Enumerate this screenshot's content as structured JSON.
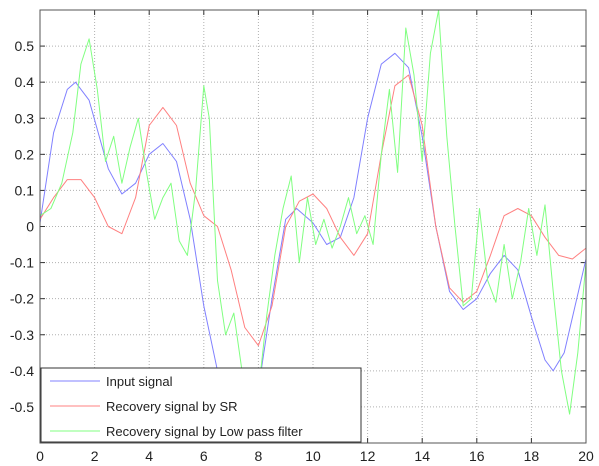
{
  "chart_data": {
    "type": "line",
    "title": "",
    "xlabel": "",
    "ylabel": "",
    "xlim": [
      0,
      20
    ],
    "ylim": [
      -0.6,
      0.6
    ],
    "grid": true,
    "legend_position": "bottom-left",
    "xticks": [
      0,
      2,
      4,
      6,
      8,
      10,
      12,
      14,
      16,
      18,
      20
    ],
    "yticks": [
      0.5,
      0.4,
      0.3,
      0.2,
      0.1,
      0,
      -0.1,
      -0.2,
      -0.3,
      -0.4,
      -0.5
    ],
    "xtick_labels": [
      "0",
      "2",
      "4",
      "6",
      "8",
      "10",
      "12",
      "14",
      "16",
      "18",
      "20"
    ],
    "ytick_labels": [
      "0.5",
      "0.4",
      "0.3",
      "0.2",
      "0.1",
      "0",
      "-0.1",
      "-0.2",
      "-0.3",
      "-0.4",
      "-0.5"
    ],
    "series": [
      {
        "name": "Input signal",
        "color": "#8080ff",
        "x": [
          0,
          0.5,
          1.0,
          1.3,
          1.8,
          2.5,
          3.0,
          3.5,
          4.0,
          4.5,
          5.0,
          5.5,
          6.0,
          6.5,
          7.0,
          7.5,
          8.0,
          8.5,
          9.0,
          9.4,
          10.0,
          10.5,
          11.0,
          11.5,
          12.0,
          12.5,
          13.0,
          13.5,
          14.0,
          14.5,
          15.0,
          15.5,
          16.0,
          16.5,
          17.0,
          17.5,
          18.0,
          18.5,
          18.8,
          19.2,
          19.6,
          20.0
        ],
        "y": [
          0.01,
          0.26,
          0.38,
          0.4,
          0.35,
          0.16,
          0.09,
          0.12,
          0.2,
          0.23,
          0.18,
          0.02,
          -0.22,
          -0.4,
          -0.52,
          -0.55,
          -0.45,
          -0.2,
          0.02,
          0.05,
          0.01,
          -0.05,
          -0.03,
          0.08,
          0.3,
          0.45,
          0.48,
          0.44,
          0.25,
          0.0,
          -0.18,
          -0.23,
          -0.2,
          -0.13,
          -0.08,
          -0.12,
          -0.25,
          -0.37,
          -0.4,
          -0.35,
          -0.22,
          -0.09
        ]
      },
      {
        "name": "Recovery signal by SR",
        "color": "#ff8080",
        "x": [
          0,
          0.5,
          1.0,
          1.5,
          2.0,
          2.5,
          3.0,
          3.5,
          4.0,
          4.5,
          5.0,
          5.5,
          6.0,
          6.5,
          7.0,
          7.5,
          8.0,
          8.5,
          9.0,
          9.5,
          10.0,
          10.5,
          11.0,
          11.5,
          12.0,
          12.5,
          13.0,
          13.5,
          14.0,
          14.5,
          15.0,
          15.5,
          16.0,
          16.5,
          17.0,
          17.5,
          18.0,
          18.5,
          19.0,
          19.5,
          20.0
        ],
        "y": [
          0.02,
          0.08,
          0.13,
          0.13,
          0.08,
          0.0,
          -0.02,
          0.08,
          0.28,
          0.33,
          0.28,
          0.12,
          0.03,
          0.0,
          -0.12,
          -0.28,
          -0.33,
          -0.22,
          0.0,
          0.07,
          0.09,
          0.05,
          -0.03,
          -0.08,
          -0.02,
          0.2,
          0.39,
          0.42,
          0.28,
          0.0,
          -0.17,
          -0.21,
          -0.18,
          -0.08,
          0.03,
          0.05,
          0.03,
          -0.03,
          -0.08,
          -0.09,
          -0.06
        ]
      },
      {
        "name": "Recovery signal by Low pass filter",
        "color": "#80ff80",
        "x": [
          0,
          0.4,
          0.8,
          1.2,
          1.5,
          1.8,
          2.1,
          2.4,
          2.7,
          3.0,
          3.3,
          3.6,
          3.9,
          4.2,
          4.5,
          4.8,
          5.1,
          5.4,
          5.7,
          6.0,
          6.2,
          6.5,
          6.8,
          7.1,
          7.4,
          7.7,
          8.0,
          8.3,
          8.6,
          8.9,
          9.2,
          9.5,
          9.8,
          10.1,
          10.4,
          10.7,
          11.0,
          11.3,
          11.6,
          11.9,
          12.2,
          12.5,
          12.8,
          13.1,
          13.4,
          13.7,
          14.0,
          14.3,
          14.6,
          14.9,
          15.2,
          15.5,
          15.8,
          16.1,
          16.4,
          16.7,
          17.0,
          17.3,
          17.6,
          17.9,
          18.2,
          18.5,
          18.8,
          19.1,
          19.4,
          19.7,
          20.0
        ],
        "y": [
          0.03,
          0.05,
          0.12,
          0.26,
          0.45,
          0.52,
          0.38,
          0.18,
          0.25,
          0.12,
          0.22,
          0.3,
          0.15,
          0.02,
          0.08,
          0.12,
          -0.04,
          -0.08,
          0.1,
          0.39,
          0.3,
          -0.15,
          -0.3,
          -0.24,
          -0.4,
          -0.52,
          -0.46,
          -0.25,
          -0.08,
          0.05,
          0.14,
          -0.1,
          0.08,
          -0.05,
          0.02,
          -0.06,
          0.0,
          0.08,
          -0.02,
          0.03,
          -0.05,
          0.2,
          0.38,
          0.15,
          0.55,
          0.42,
          0.18,
          0.48,
          0.62,
          0.25,
          0.0,
          -0.22,
          -0.2,
          0.05,
          -0.15,
          -0.21,
          -0.05,
          -0.2,
          -0.1,
          0.05,
          -0.08,
          0.06,
          -0.18,
          -0.4,
          -0.52,
          -0.35,
          -0.1
        ]
      }
    ]
  }
}
